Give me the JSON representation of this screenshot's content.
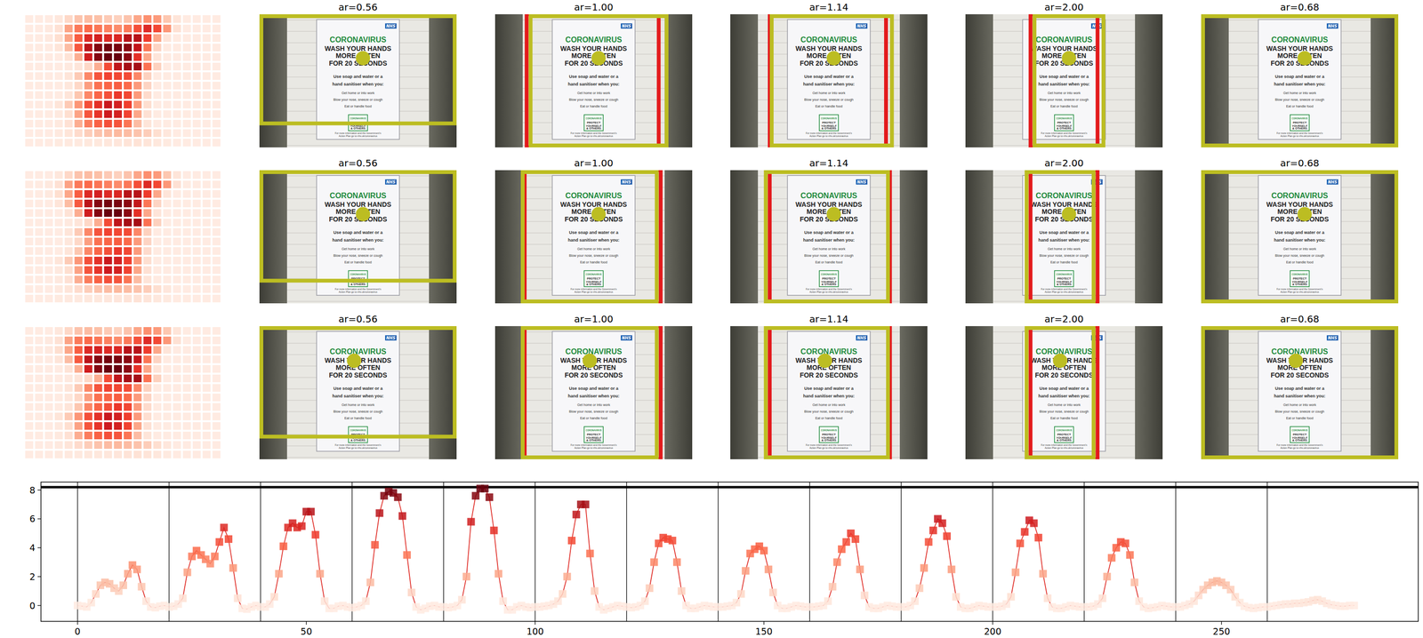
{
  "chart_data": {
    "type": "line",
    "marker": "square",
    "color": "#e0302a",
    "xlim": [
      -8,
      293
    ],
    "xticks": [
      0,
      50,
      100,
      150,
      200,
      250
    ],
    "ylim": [
      -1.1,
      8.55
    ],
    "yticks": [
      0,
      2,
      4,
      6,
      8
    ],
    "separators": [
      0,
      20,
      40,
      60,
      80,
      100,
      120,
      140,
      160,
      180,
      200,
      220,
      240,
      260
    ],
    "reference_line": 8.2,
    "x": [
      0,
      1,
      2,
      3,
      4,
      5,
      6,
      7,
      8,
      9,
      10,
      11,
      12,
      13,
      14,
      15,
      16,
      17,
      18,
      19,
      20,
      21,
      22,
      23,
      24,
      25,
      26,
      27,
      28,
      29,
      30,
      31,
      32,
      33,
      34,
      35,
      36,
      37,
      38,
      39,
      40,
      41,
      42,
      43,
      44,
      45,
      46,
      47,
      48,
      49,
      50,
      51,
      52,
      53,
      54,
      55,
      56,
      57,
      58,
      59,
      60,
      61,
      62,
      63,
      64,
      65,
      66,
      67,
      68,
      69,
      70,
      71,
      72,
      73,
      74,
      75,
      76,
      77,
      78,
      79,
      80,
      81,
      82,
      83,
      84,
      85,
      86,
      87,
      88,
      89,
      90,
      91,
      92,
      93,
      94,
      95,
      96,
      97,
      98,
      99,
      100,
      101,
      102,
      103,
      104,
      105,
      106,
      107,
      108,
      109,
      110,
      111,
      112,
      113,
      114,
      115,
      116,
      117,
      118,
      119,
      120,
      121,
      122,
      123,
      124,
      125,
      126,
      127,
      128,
      129,
      130,
      131,
      132,
      133,
      134,
      135,
      136,
      137,
      138,
      139,
      140,
      141,
      142,
      143,
      144,
      145,
      146,
      147,
      148,
      149,
      150,
      151,
      152,
      153,
      154,
      155,
      156,
      157,
      158,
      159,
      160,
      161,
      162,
      163,
      164,
      165,
      166,
      167,
      168,
      169,
      170,
      171,
      172,
      173,
      174,
      175,
      176,
      177,
      178,
      179,
      180,
      181,
      182,
      183,
      184,
      185,
      186,
      187,
      188,
      189,
      190,
      191,
      192,
      193,
      194,
      195,
      196,
      197,
      198,
      199,
      200,
      201,
      202,
      203,
      204,
      205,
      206,
      207,
      208,
      209,
      210,
      211,
      212,
      213,
      214,
      215,
      216,
      217,
      218,
      219,
      220,
      221,
      222,
      223,
      224,
      225,
      226,
      227,
      228,
      229,
      230,
      231,
      232,
      233,
      234,
      235,
      236,
      237,
      238,
      239,
      240,
      241,
      242,
      243,
      244,
      245,
      246,
      247,
      248,
      249,
      250,
      251,
      252,
      253,
      254,
      255,
      256,
      257,
      258,
      259,
      260,
      261,
      262,
      263,
      264,
      265,
      266,
      267,
      268,
      269,
      270,
      271,
      272,
      273,
      274,
      275,
      276,
      277,
      278,
      279
    ],
    "values": [
      0,
      -0.05,
      -0.1,
      0.2,
      0.8,
      1.4,
      1.6,
      1.5,
      1.2,
      1.0,
      1.4,
      2.2,
      2.8,
      2.5,
      1.3,
      0.3,
      -0.1,
      -0.15,
      -0.05,
      0,
      -0.1,
      -0.05,
      0.1,
      0.5,
      2.3,
      3.4,
      3.8,
      3.5,
      3.2,
      2.9,
      3.4,
      4.4,
      5.4,
      4.6,
      2.6,
      0.5,
      -0.2,
      -0.25,
      -0.1,
      0,
      -0.1,
      -0.1,
      0.1,
      0.6,
      2.2,
      4.1,
      5.4,
      5.7,
      5.4,
      5.5,
      6.5,
      6.5,
      4.9,
      2.2,
      0.3,
      -0.2,
      -0.2,
      -0.05,
      0,
      -0.1,
      -0.15,
      -0.1,
      0,
      0.3,
      1.6,
      4.2,
      6.4,
      7.6,
      7.9,
      7.8,
      7.5,
      6.2,
      3.5,
      0.9,
      -0.1,
      -0.3,
      -0.2,
      -0.05,
      0,
      -0.1,
      -0.1,
      -0.15,
      -0.1,
      0,
      0.4,
      2.0,
      5.8,
      7.6,
      8.1,
      8.1,
      7.5,
      5.2,
      2.2,
      0.3,
      -0.3,
      -0.3,
      -0.1,
      0,
      -0.1,
      -0.15,
      -0.1,
      -0.1,
      -0.05,
      0,
      0.1,
      0.3,
      0.8,
      2.0,
      4.5,
      6.3,
      7.0,
      7.0,
      3.6,
      1.0,
      -0.1,
      -0.3,
      -0.2,
      -0.1,
      0,
      -0.05,
      -0.1,
      -0.15,
      -0.1,
      0,
      0.3,
      1.2,
      3.0,
      4.3,
      4.7,
      4.6,
      4.5,
      3.0,
      1.0,
      0,
      -0.2,
      -0.2,
      -0.1,
      0,
      -0.05,
      -0.1,
      -0.1,
      -0.1,
      -0.05,
      0,
      0.2,
      0.8,
      2.4,
      3.6,
      3.9,
      4.1,
      3.8,
      2.5,
      0.9,
      0,
      -0.2,
      -0.2,
      -0.1,
      0,
      -0.05,
      -0.1,
      -0.1,
      -0.1,
      -0.05,
      0,
      0.3,
      1.3,
      3.0,
      3.9,
      4.4,
      5.0,
      4.6,
      2.5,
      0.7,
      -0.1,
      -0.2,
      -0.2,
      -0.1,
      0,
      -0.05,
      -0.1,
      -0.1,
      -0.1,
      0,
      0.3,
      1.2,
      2.6,
      4.4,
      5.2,
      6.0,
      5.7,
      4.8,
      2.5,
      0.6,
      -0.1,
      -0.2,
      -0.2,
      -0.1,
      0,
      -0.05,
      -0.1,
      -0.1,
      -0.1,
      -0.05,
      0.1,
      0.6,
      2.3,
      4.3,
      5.1,
      5.9,
      5.7,
      4.7,
      2.2,
      0.5,
      -0.1,
      -0.2,
      -0.2,
      -0.1,
      0,
      -0.05,
      -0.1,
      -0.1,
      -0.1,
      -0.05,
      0.1,
      0.5,
      2.0,
      3.3,
      4.0,
      4.4,
      4.3,
      3.5,
      1.6,
      0.3,
      -0.1,
      -0.2,
      -0.15,
      -0.1,
      0,
      -0.05,
      -0.1,
      -0.1,
      -0.1,
      0,
      0.1,
      0.3,
      0.7,
      1.1,
      1.4,
      1.6,
      1.7,
      1.6,
      1.4,
      1.1,
      0.6,
      0.2,
      -0.05,
      -0.15,
      -0.2,
      -0.15,
      -0.1,
      -0.1,
      -0.05,
      0,
      0.05,
      0.1,
      0.1,
      0.15,
      0.15,
      0.2,
      0.25,
      0.35,
      0.4,
      0.3,
      0.15,
      0.05,
      0,
      -0.05,
      -0.05,
      0,
      0
    ]
  },
  "figure": {
    "poster": {
      "title": "CORONAVIRUS",
      "logo": "NHS",
      "headline": [
        "WASH YOUR HANDS",
        "MORE OFTEN",
        "FOR 20 SECONDS"
      ],
      "body": [
        "Use soap and water or a",
        "hand sanitiser when you:",
        "Get home or into work",
        "Blow your nose, sneeze or cough",
        "Eat or handle food"
      ],
      "badge": [
        "CORONAVIRUS",
        "PROTECT",
        "YOURSELF",
        "& OTHERS"
      ],
      "footer": [
        "For more information and the Government's",
        "Action Plan go to nhs.uk/coronavirus"
      ]
    },
    "box_color": "#bcbd22",
    "red_box_color": "#e31a1c",
    "rows": [
      {
        "point": [
          0.525,
          0.33
        ],
        "crops": [
          {
            "title": "ar=0.56",
            "box": [
              0,
              0,
              1,
              0.82
            ]
          },
          {
            "title": "ar=1.00",
            "box": [
              0.18,
              0,
              0.87,
              1
            ],
            "red_box": [
              0.16,
              0,
              0.83,
              1
            ]
          },
          {
            "title": "ar=1.14",
            "box": [
              0.21,
              0,
              0.82,
              1
            ],
            "red_box": [
              0.2,
              0,
              0.79,
              1
            ]
          },
          {
            "title": "ar=2.00",
            "box": [
              0.35,
              0,
              0.7,
              1
            ],
            "red_box": [
              0.33,
              0,
              0.67,
              1
            ]
          },
          {
            "title": "ar=0.68",
            "box": [
              0,
              0,
              1,
              1
            ]
          }
        ]
      },
      {
        "point": [
          0.525,
          0.33
        ],
        "crops": [
          {
            "title": "ar=0.56",
            "box": [
              0,
              0,
              1,
              0.83
            ]
          },
          {
            "title": "ar=1.00",
            "box": [
              0.14,
              0,
              0.82,
              1
            ],
            "red_box": [
              0.15,
              0,
              0.84,
              1
            ]
          },
          {
            "title": "ar=1.14",
            "box": [
              0.18,
              0,
              0.8,
              1
            ],
            "red_box": [
              0.2,
              0,
              0.81,
              1
            ]
          },
          {
            "title": "ar=2.00",
            "box": [
              0.31,
              0,
              0.65,
              1
            ],
            "red_box": [
              0.33,
              0,
              0.67,
              1
            ]
          },
          {
            "title": "ar=0.68",
            "box": [
              0,
              0,
              1,
              1
            ]
          }
        ]
      },
      {
        "point": [
          0.48,
          0.26
        ],
        "crops": [
          {
            "title": "ar=0.56",
            "box": [
              0,
              0,
              1,
              0.83
            ]
          },
          {
            "title": "ar=1.00",
            "box": [
              0.14,
              0,
              0.82,
              1
            ],
            "red_box": [
              0.15,
              0,
              0.84,
              1
            ]
          },
          {
            "title": "ar=1.14",
            "box": [
              0.18,
              0,
              0.8,
              1
            ],
            "red_box": [
              0.2,
              0,
              0.81,
              1
            ]
          },
          {
            "title": "ar=2.00",
            "box": [
              0.31,
              0,
              0.65,
              1
            ],
            "red_box": [
              0.33,
              0,
              0.67,
              1
            ]
          },
          {
            "title": "ar=0.68",
            "box": [
              0,
              0,
              1,
              1
            ]
          }
        ]
      }
    ]
  }
}
